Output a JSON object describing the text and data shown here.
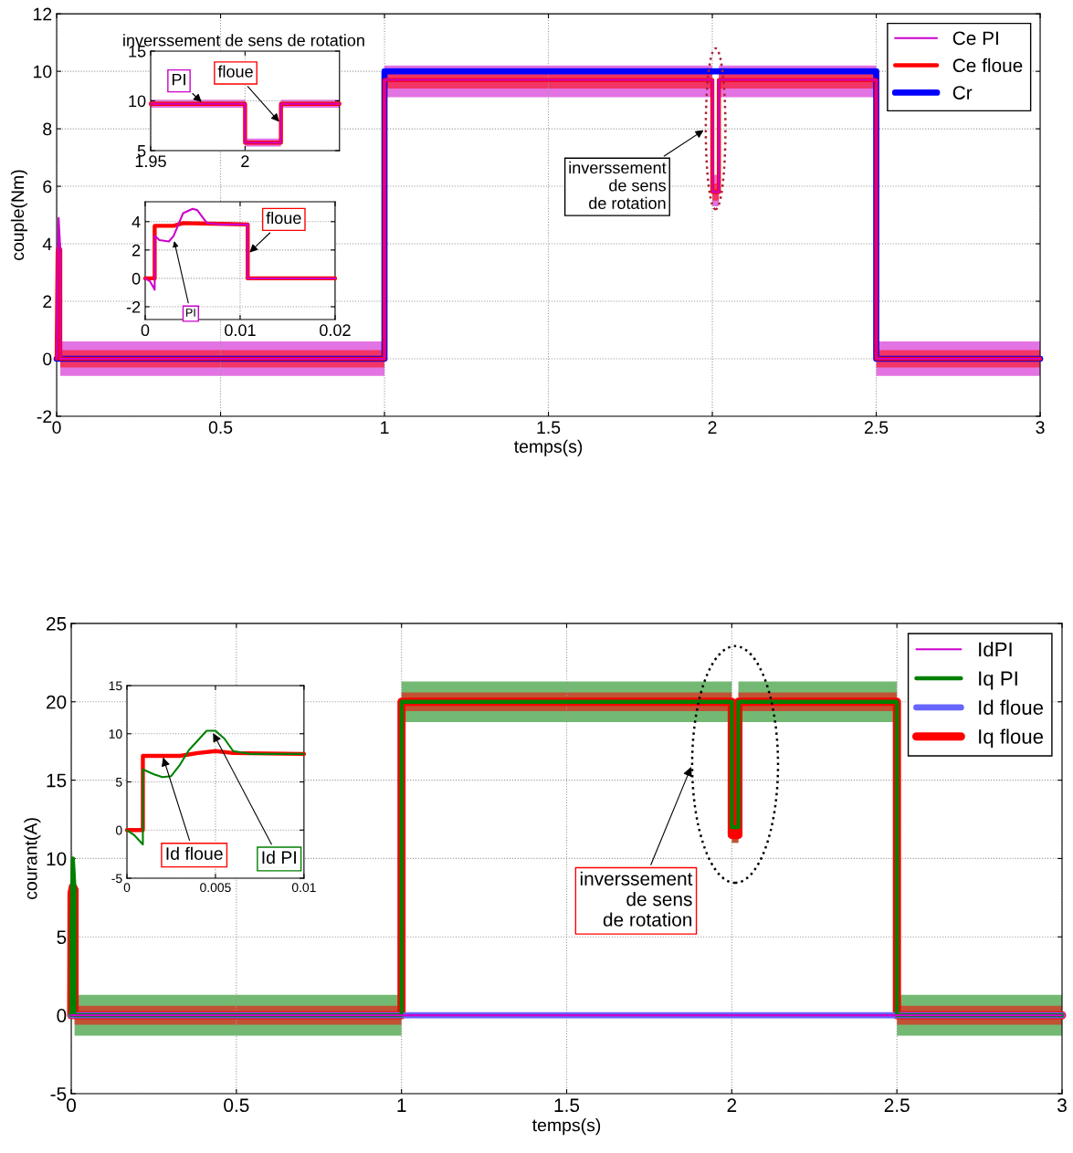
{
  "chart_data": [
    {
      "type": "line",
      "xlabel": "temps(s)",
      "ylabel": "couple(Nm)",
      "xlim": [
        0,
        3
      ],
      "ylim": [
        -2,
        12
      ],
      "xticks": [
        0,
        0.5,
        1,
        1.5,
        2,
        2.5,
        3
      ],
      "yticks": [
        -2,
        0,
        2,
        4,
        6,
        8,
        10,
        12
      ],
      "grid": true,
      "legend": "top right",
      "line_style": "solid",
      "series": [
        {
          "name": "Ce PI",
          "color": "#cc00cc",
          "x": [
            0,
            0.003,
            0.006,
            0.011,
            0.011,
            1.0,
            1.0,
            2.0,
            2.0,
            2.02,
            2.02,
            2.5,
            2.5,
            3.0
          ],
          "values": [
            0,
            3,
            4.9,
            3.8,
            0,
            0,
            9.7,
            9.7,
            5.8,
            5.8,
            9.7,
            9.7,
            0,
            0
          ],
          "lower": [
            0,
            2.6,
            4.8,
            3.7,
            -0.6,
            -0.6,
            9.1,
            9.1,
            5.3,
            5.3,
            9.1,
            9.1,
            -0.6,
            -0.6
          ],
          "upper": [
            0,
            3.2,
            5,
            3.9,
            0.6,
            0.6,
            10.2,
            10.2,
            6.4,
            6.4,
            10.2,
            10.2,
            0.6,
            0.6
          ]
        },
        {
          "name": "Ce floue",
          "color": "#ff0000",
          "x": [
            0,
            0.003,
            0.006,
            0.011,
            0.011,
            1.0,
            1.0,
            2.0,
            2.0,
            2.02,
            2.02,
            2.5,
            2.5,
            3.0
          ],
          "values": [
            0,
            3.7,
            3.9,
            3.8,
            0,
            0,
            9.7,
            9.7,
            5.8,
            5.8,
            9.7,
            9.7,
            0,
            0
          ],
          "lower": [
            0,
            3.6,
            3.8,
            3.7,
            -0.3,
            -0.3,
            9.4,
            9.4,
            5.5,
            5.5,
            9.4,
            9.4,
            -0.3,
            -0.3
          ],
          "upper": [
            0,
            3.8,
            4,
            3.9,
            0.3,
            0.3,
            10,
            10,
            6.1,
            6.1,
            10,
            10,
            0.3,
            0.3
          ]
        },
        {
          "name": "Cr",
          "color": "#0000ff",
          "x": [
            0,
            1,
            1,
            2.5,
            2.5,
            3
          ],
          "values": [
            0,
            0,
            10,
            10,
            0,
            0
          ]
        }
      ],
      "annotations": [
        "inverssement\nde sens\nde rotation"
      ]
    },
    {
      "type": "line",
      "title": "inverssement de sens de rotation",
      "xlim": [
        1.95,
        2.05
      ],
      "ylim": [
        5,
        15
      ],
      "xticks": [
        1.95,
        2
      ],
      "yticks": [
        5,
        10,
        15
      ],
      "grid": true,
      "line_style": "solid",
      "series": [
        {
          "color": "#cc00cc",
          "x": [
            1.95,
            2.0,
            2.0,
            2.019,
            2.019,
            2.05
          ],
          "values": [
            9.7,
            9.7,
            5.8,
            5.8,
            9.7,
            9.7
          ],
          "lower": [
            9.3,
            9.3,
            5.4,
            5.4,
            9.3,
            9.3
          ],
          "upper": [
            10.1,
            10.1,
            6.2,
            6.2,
            10.1,
            10.1
          ]
        },
        {
          "color": "#ff0000",
          "x": [
            1.95,
            2.0,
            2.0,
            2.019,
            2.019,
            2.05
          ],
          "values": [
            9.7,
            9.7,
            5.8,
            5.8,
            9.7,
            9.7
          ]
        }
      ],
      "annotations": [
        {
          "text": "PI",
          "x": 1.978,
          "y": 9.7
        },
        {
          "text": "floue",
          "x": 2.019,
          "y": 7.7
        }
      ]
    },
    {
      "type": "line",
      "xlim": [
        0,
        0.02
      ],
      "ylim": [
        -2.9,
        5.4
      ],
      "xticks": [
        0,
        0.01,
        0.02
      ],
      "yticks": [
        -2,
        0,
        2,
        4
      ],
      "grid": true,
      "line_style": "solid",
      "series": [
        {
          "color": "#cc00cc",
          "x": [
            0,
            0.0005,
            0.001,
            0.001,
            0.0015,
            0.0025,
            0.003,
            0.004,
            0.005,
            0.0055,
            0.0065,
            0.008,
            0.0108,
            0.0108,
            0.02
          ],
          "values": [
            0,
            -0.2,
            -0.8,
            3,
            2.7,
            2.6,
            3,
            4.6,
            4.9,
            4.8,
            3.9,
            3.8,
            3.8,
            0,
            0
          ]
        },
        {
          "color": "#ff0000",
          "x": [
            0,
            0.001,
            0.001,
            0.003,
            0.004,
            0.0108,
            0.0108,
            0.02
          ],
          "values": [
            0,
            0,
            3.7,
            3.7,
            3.9,
            3.8,
            0,
            0
          ]
        }
      ],
      "annotations": [
        {
          "text": "PI",
          "x": 0.003,
          "y": 2.8
        },
        {
          "text": "floue",
          "x": 0.0108,
          "y": 1.7
        }
      ]
    },
    {
      "type": "line",
      "xlabel": "temps(s)",
      "ylabel": "courant(A)",
      "xlim": [
        0,
        3
      ],
      "ylim": [
        -5,
        25
      ],
      "xticks": [
        0,
        0.5,
        1,
        1.5,
        2,
        2.5,
        3
      ],
      "yticks": [
        -5,
        0,
        5,
        10,
        15,
        20,
        25
      ],
      "grid": true,
      "legend": "top right",
      "line_style": "solid",
      "series": [
        {
          "name": "IdPI",
          "color": "#cc00cc",
          "x": [
            0,
            3
          ],
          "values": [
            0,
            0
          ]
        },
        {
          "name": "Iq PI",
          "color": "#008000",
          "x": [
            0,
            0.001,
            0.005,
            0.01,
            0.01,
            1,
            1,
            2,
            2,
            2.02,
            2.02,
            2.5,
            2.5,
            3
          ],
          "values": [
            0,
            6,
            10,
            8,
            0,
            0,
            20,
            20,
            12,
            12,
            20,
            20,
            0,
            0
          ],
          "lower": [
            0,
            5.5,
            9.5,
            7.5,
            -1.3,
            -1.3,
            18.7,
            18.7,
            11,
            11,
            18.7,
            18.7,
            -1.3,
            -1.3
          ],
          "upper": [
            0,
            6.5,
            10.5,
            8.5,
            1.3,
            1.3,
            21.3,
            21.3,
            13,
            13,
            21.3,
            21.3,
            1.3,
            1.3
          ]
        },
        {
          "name": "Id floue",
          "color": "#6666ff",
          "x": [
            0,
            3
          ],
          "values": [
            0,
            0
          ]
        },
        {
          "name": "Iq floue",
          "color": "#ff0000",
          "x": [
            0,
            0.001,
            0.005,
            0.01,
            0.01,
            1,
            1,
            2,
            2,
            2.02,
            2.02,
            2.5,
            2.5,
            3
          ],
          "values": [
            0,
            7.8,
            8.2,
            8,
            0,
            0,
            20,
            20,
            11.5,
            11.5,
            20,
            20,
            0,
            0
          ],
          "lower": [
            0,
            7.6,
            8,
            7.8,
            -0.6,
            -0.6,
            19.4,
            19.4,
            11,
            11,
            19.4,
            19.4,
            -0.6,
            -0.6
          ],
          "upper": [
            0,
            8,
            8.4,
            8.2,
            0.6,
            0.6,
            20.6,
            20.6,
            12,
            12,
            20.6,
            20.6,
            0.6,
            0.6
          ]
        }
      ],
      "annotations": [
        "inverssement\nde sens\nde rotation"
      ]
    },
    {
      "type": "line",
      "xlim": [
        0,
        0.01
      ],
      "ylim": [
        -5,
        15
      ],
      "xticks": [
        0,
        0.005,
        0.01
      ],
      "yticks": [
        -5,
        0,
        5,
        10,
        15
      ],
      "grid": true,
      "line_style": "solid",
      "series": [
        {
          "color": "#008000",
          "x": [
            0,
            0.0004,
            0.0008,
            0.0009,
            0.0009,
            0.0015,
            0.002,
            0.0025,
            0.003,
            0.0035,
            0.0045,
            0.005,
            0.0055,
            0.006,
            0.007,
            0.01
          ],
          "values": [
            0,
            -0.5,
            -1.3,
            -1.5,
            6.3,
            5.8,
            5.5,
            5.6,
            6.8,
            8.3,
            10.3,
            10.3,
            9.5,
            8.2,
            7.9,
            7.9
          ]
        },
        {
          "color": "#ff0000",
          "x": [
            0,
            0.0009,
            0.0009,
            0.003,
            0.004,
            0.005,
            0.006,
            0.01
          ],
          "values": [
            0,
            0,
            7.7,
            7.7,
            8.0,
            8.2,
            8.0,
            7.9
          ]
        }
      ],
      "annotations": [
        {
          "text": "Id floue",
          "x": 0.002,
          "y": 7.8
        },
        {
          "text": "Id PI",
          "x": 0.0048,
          "y": 10.3
        }
      ]
    }
  ]
}
